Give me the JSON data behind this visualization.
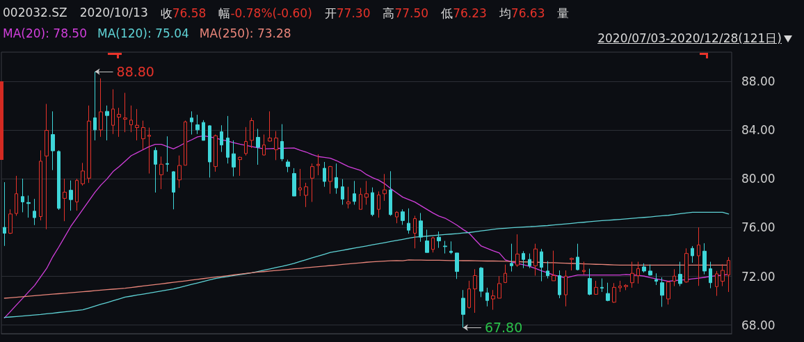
{
  "chart_data": {
    "type": "candlestick",
    "title": "002032.SZ",
    "annotations": [
      "2020/10/13",
      "收76.58",
      "幅-0.78%(-0.60)",
      "开77.30",
      "高77.50",
      "低76.23",
      "均76.63",
      "量",
      "2020/07/03-2020/12/28(121日)",
      "88.80",
      "67.80"
    ],
    "categories": [
      null,
      null,
      null,
      null,
      null,
      null,
      null,
      null,
      null,
      null,
      null,
      null,
      null,
      null,
      null,
      null,
      null,
      null,
      null,
      null,
      null,
      null,
      null,
      null,
      null,
      null,
      null,
      null,
      null,
      null,
      null,
      null,
      null,
      null,
      null,
      null,
      null,
      null,
      null,
      null,
      null,
      null,
      null,
      null,
      null,
      null,
      null,
      null,
      null,
      null,
      null,
      null,
      null,
      null,
      null,
      null,
      null,
      null,
      null,
      null,
      null,
      null,
      null,
      null,
      null,
      null,
      null,
      null,
      null,
      null,
      null,
      null,
      null,
      null,
      null,
      null,
      null,
      null,
      null,
      null,
      null,
      null,
      null,
      null,
      null,
      null,
      null,
      null,
      null,
      null,
      null,
      null,
      null,
      null,
      null,
      null,
      null,
      null,
      null,
      null,
      null,
      null,
      null,
      null,
      null,
      null,
      null,
      null,
      null,
      null,
      null,
      null,
      null,
      null,
      null,
      null,
      null,
      null,
      null,
      null,
      null
    ],
    "ohlc": [
      [
        76.02,
        79.73,
        74.5,
        75.54
      ],
      [
        75.54,
        77.5,
        75.48,
        77.12
      ],
      [
        77.16,
        80.25,
        76.97,
        78.78
      ],
      [
        78.55,
        80.02,
        77.26,
        78.11
      ],
      [
        78.06,
        78.63,
        76.82,
        77.98
      ],
      [
        77.35,
        78.36,
        76.21,
        76.82
      ],
      [
        76.91,
        82.34,
        76.59,
        81.45
      ],
      [
        81.88,
        86.15,
        75.87,
        83.98
      ],
      [
        83.64,
        85.54,
        80.72,
        82.3
      ],
      [
        82.25,
        82.34,
        77.45,
        77.58
      ],
      [
        78.4,
        80.02,
        76.53,
        78.91
      ],
      [
        79.07,
        79.87,
        77.39,
        78.3
      ],
      [
        78.11,
        80.02,
        77.39,
        79.87
      ],
      [
        79.6,
        81.31,
        79.45,
        80.65
      ],
      [
        80.06,
        86.02,
        79.67,
        84.74
      ],
      [
        85.01,
        88.8,
        83.16,
        84.02
      ],
      [
        84.02,
        88.25,
        83.45,
        85.5
      ],
      [
        85.54,
        86.02,
        83.16,
        85.2
      ],
      [
        84.4,
        87.35,
        83.68,
        85.73
      ],
      [
        85.07,
        85.83,
        83.45,
        85.3
      ],
      [
        84.9,
        87.06,
        83.83,
        85.0
      ],
      [
        84.44,
        86.02,
        83.83,
        84.82
      ],
      [
        84.21,
        85.73,
        83.16,
        84.4
      ],
      [
        83.29,
        84.78,
        82.4,
        84.21
      ],
      [
        83.49,
        84.21,
        80.44,
        83.58
      ],
      [
        82.34,
        82.59,
        78.88,
        81.2
      ],
      [
        80.34,
        81.83,
        79.16,
        81.2
      ],
      [
        81.26,
        83.49,
        80.59,
        81.2
      ],
      [
        80.59,
        80.63,
        77.5,
        78.91
      ],
      [
        79.92,
        81.92,
        79.26,
        81.1
      ],
      [
        81.12,
        84.78,
        81.12,
        84.68
      ],
      [
        85.0,
        85.54,
        83.64,
        84.68
      ],
      [
        84.44,
        85.26,
        83.68,
        84.02
      ],
      [
        84.63,
        84.82,
        83.16,
        83.16
      ],
      [
        84.36,
        84.4,
        80.11,
        81.39
      ],
      [
        81.01,
        83.64,
        80.59,
        83.54
      ],
      [
        83.87,
        84.4,
        82.21,
        82.78
      ],
      [
        83.35,
        85.16,
        81.26,
        81.77
      ],
      [
        82.06,
        83.16,
        80.21,
        80.97
      ],
      [
        81.58,
        81.83,
        80.25,
        81.77
      ],
      [
        82.08,
        84.25,
        81.92,
        83.07
      ],
      [
        83.16,
        85.01,
        82.53,
        84.78
      ],
      [
        83.41,
        84.11,
        81.16,
        82.59
      ],
      [
        81.96,
        83.64,
        81.92,
        82.78
      ],
      [
        83.1,
        85.54,
        83.07,
        83.35
      ],
      [
        82.4,
        83.92,
        81.54,
        83.35
      ],
      [
        83.07,
        84.49,
        81.45,
        81.64
      ],
      [
        81.39,
        81.58,
        80.55,
        81.01
      ],
      [
        80.44,
        80.88,
        78.59,
        78.59
      ],
      [
        79.1,
        80.82,
        78.59,
        79.26
      ],
      [
        78.65,
        79.68,
        77.69,
        79.35
      ],
      [
        80.06,
        81.26,
        78.11,
        81.01
      ],
      [
        81.1,
        82.02,
        80.3,
        81.2
      ],
      [
        80.87,
        81.39,
        79.35,
        79.79
      ],
      [
        79.79,
        81.07,
        78.78,
        81.01
      ],
      [
        80.11,
        81.26,
        78.78,
        79.26
      ],
      [
        79.35,
        79.98,
        77.88,
        78.34
      ],
      [
        77.96,
        79.35,
        77.58,
        78.11
      ],
      [
        78.78,
        79.83,
        77.88,
        78.15
      ],
      [
        77.5,
        79.26,
        77.5,
        78.72
      ],
      [
        78.49,
        79.83,
        77.88,
        78.78
      ],
      [
        78.87,
        79.3,
        76.93,
        77.07
      ],
      [
        77.5,
        78.97,
        76.82,
        78.68
      ],
      [
        78.78,
        80.4,
        78.2,
        79.1
      ],
      [
        79.1,
        80.63,
        76.97,
        77.07
      ],
      [
        76.88,
        77.35,
        76.36,
        77.26
      ],
      [
        77.3,
        77.5,
        76.23,
        76.58
      ],
      [
        76.36,
        77.58,
        75.5,
        75.79
      ],
      [
        75.54,
        76.97,
        74.3,
        76.74
      ],
      [
        76.55,
        77.2,
        74.84,
        75.22
      ],
      [
        74.91,
        75.83,
        73.96,
        73.96
      ],
      [
        74.21,
        75.26,
        73.96,
        75.16
      ],
      [
        75.22,
        75.68,
        74.34,
        74.91
      ],
      [
        74.49,
        74.91,
        73.88,
        74.44
      ],
      [
        74.07,
        74.87,
        73.83,
        73.96
      ],
      [
        73.92,
        73.92,
        71.79,
        72.4
      ],
      [
        70.21,
        70.88,
        67.8,
        68.88
      ],
      [
        69.45,
        71.64,
        69.35,
        70.97
      ],
      [
        70.97,
        72.59,
        69.01,
        72.06
      ],
      [
        72.68,
        72.78,
        70.3,
        70.78
      ],
      [
        70.65,
        71.07,
        69.54,
        70.02
      ],
      [
        70.15,
        70.88,
        69.26,
        70.4
      ],
      [
        70.21,
        72.02,
        70.21,
        71.41
      ],
      [
        71.5,
        72.97,
        71.45,
        72.25
      ],
      [
        73.07,
        74.68,
        72.4,
        72.87
      ],
      [
        72.93,
        75.45,
        72.78,
        73.83
      ],
      [
        73.88,
        74.07,
        72.68,
        73.39
      ],
      [
        73.39,
        73.88,
        72.68,
        72.87
      ],
      [
        72.87,
        74.68,
        72.06,
        74.25
      ],
      [
        74.02,
        74.26,
        71.6,
        72.74
      ],
      [
        72.44,
        73.25,
        71.83,
        72.06
      ],
      [
        71.64,
        74.11,
        71.64,
        72.06
      ],
      [
        72.06,
        72.49,
        70.21,
        70.49
      ],
      [
        70.49,
        72.49,
        69.54,
        72.02
      ],
      [
        73.39,
        73.54,
        72.49,
        73.48
      ],
      [
        73.58,
        74.68,
        72.49,
        72.55
      ],
      [
        72.4,
        73.2,
        72.17,
        72.49
      ],
      [
        71.83,
        72.63,
        70.45,
        70.53
      ],
      [
        70.53,
        71.64,
        70.49,
        71.1
      ],
      [
        71.1,
        71.83,
        70.72,
        71.03
      ],
      [
        70.6,
        71.48,
        69.96,
        70.02
      ],
      [
        69.88,
        71.45,
        69.83,
        71.1
      ],
      [
        71.07,
        71.64,
        70.72,
        71.2
      ],
      [
        71.16,
        71.35,
        70.87,
        71.26
      ],
      [
        71.48,
        73.2,
        71.07,
        72.25
      ],
      [
        72.06,
        73.2,
        71.41,
        72.63
      ],
      [
        72.78,
        73.07,
        72.31,
        72.44
      ],
      [
        72.44,
        72.97,
        72.06,
        72.11
      ],
      [
        71.73,
        72.25,
        71.29,
        71.6
      ],
      [
        71.48,
        71.92,
        69.5,
        70.45
      ],
      [
        70.15,
        71.64,
        69.69,
        71.54
      ],
      [
        71.6,
        72.59,
        71.2,
        72.02
      ],
      [
        72.17,
        73.2,
        71.2,
        71.41
      ],
      [
        71.54,
        74.3,
        71.48,
        73.88
      ],
      [
        74.3,
        74.49,
        73.12,
        73.69
      ],
      [
        73.69,
        76.02,
        71.22,
        74.58
      ],
      [
        74.07,
        74.72,
        72.17,
        72.44
      ],
      [
        72.63,
        73.2,
        71.03,
        71.48
      ],
      [
        71.16,
        72.44,
        70.4,
        72.21
      ],
      [
        71.6,
        73.0,
        71.2,
        72.49
      ],
      [
        72.11,
        73.58,
        70.72,
        73.31
      ]
    ],
    "colors": [
      "#3fd6d9",
      "#e8332a",
      "#e8332a",
      "#3fd6d9",
      "#3fd6d9",
      "#3fd6d9",
      "#e8332a",
      "#e8332a",
      "#3fd6d9",
      "#3fd6d9",
      "#e8332a",
      "#3fd6d9",
      "#e8332a",
      "#e8332a",
      "#e8332a",
      "#3fd6d9",
      "#e8332a",
      "#3fd6d9",
      "#e8332a",
      "#e8332a",
      "#e8332a",
      "#e8332a",
      "#e8332a",
      "#e8332a",
      "#e8332a",
      "#3fd6d9",
      "#e8332a",
      "#3fd6d9",
      "#3fd6d9",
      "#e8332a",
      "#e8332a",
      "#3fd6d9",
      "#3fd6d9",
      "#3fd6d9",
      "#3fd6d9",
      "#e8332a",
      "#3fd6d9",
      "#3fd6d9",
      "#3fd6d9",
      "#e8332a",
      "#e8332a",
      "#e8332a",
      "#3fd6d9",
      "#e8332a",
      "#e8332a",
      "#e8332a",
      "#3fd6d9",
      "#3fd6d9",
      "#3fd6d9",
      "#e8332a",
      "#e8332a",
      "#e8332a",
      "#e8332a",
      "#3fd6d9",
      "#e8332a",
      "#3fd6d9",
      "#3fd6d9",
      "#e8332a",
      "#3fd6d9",
      "#e8332a",
      "#e8332a",
      "#3fd6d9",
      "#e8332a",
      "#e8332a",
      "#3fd6d9",
      "#e8332a",
      "#3fd6d9",
      "#3fd6d9",
      "#e8332a",
      "#3fd6d9",
      "#3fd6d9",
      "#e8332a",
      "#3fd6d9",
      "#3fd6d9",
      "#3fd6d9",
      "#3fd6d9",
      "#3fd6d9",
      "#e8332a",
      "#e8332a",
      "#3fd6d9",
      "#3fd6d9",
      "#e8332a",
      "#e8332a",
      "#e8332a",
      "#3fd6d9",
      "#e8332a",
      "#3fd6d9",
      "#3fd6d9",
      "#e8332a",
      "#3fd6d9",
      "#3fd6d9",
      "#e8332a",
      "#3fd6d9",
      "#e8332a",
      "#e8332a",
      "#3fd6d9",
      "#e8332a",
      "#3fd6d9",
      "#e8332a",
      "#3fd6d9",
      "#3fd6d9",
      "#e8332a",
      "#e8332a",
      "#e8332a",
      "#e8332a",
      "#e8332a",
      "#3fd6d9",
      "#3fd6d9",
      "#3fd6d9",
      "#3fd6d9",
      "#e8332a",
      "#e8332a",
      "#3fd6d9",
      "#e8332a",
      "#3fd6d9",
      "#e8332a",
      "#3fd6d9",
      "#3fd6d9",
      "#e8332a",
      "#e8332a",
      "#e8332a"
    ],
    "series": [
      {
        "type": "line",
        "name": "MA(20): 78.50",
        "color": "#d23fdc",
        "values": [
          68.59,
          69.12,
          69.66,
          70.19,
          70.73,
          71.26,
          71.95,
          72.65,
          73.6,
          74.4,
          75.25,
          76.1,
          76.8,
          77.5,
          78.2,
          78.9,
          79.5,
          80.0,
          80.6,
          81.0,
          81.45,
          81.9,
          82.15,
          82.4,
          82.65,
          82.84,
          82.84,
          82.65,
          82.46,
          82.7,
          82.97,
          83.2,
          83.45,
          83.54,
          83.45,
          83.35,
          83.2,
          83.1,
          82.97,
          82.85,
          82.75,
          82.65,
          82.55,
          82.46,
          82.48,
          82.5,
          82.5,
          82.52,
          82.53,
          82.35,
          82.2,
          82.0,
          81.83,
          81.77,
          81.7,
          81.5,
          81.25,
          81.01,
          80.85,
          80.7,
          80.35,
          80.1,
          79.9,
          79.6,
          79.2,
          78.85,
          78.5,
          78.3,
          78.1,
          77.8,
          77.5,
          77.2,
          76.95,
          76.78,
          76.5,
          76.2,
          75.85,
          75.54,
          75.0,
          74.49,
          74.3,
          74.1,
          73.92,
          73.35,
          73.2,
          73.05,
          72.95,
          72.82,
          72.65,
          72.45,
          72.3,
          72.11,
          72.0,
          71.87,
          72.0,
          72.11,
          72.11,
          72.11,
          72.11,
          72.11,
          72.11,
          72.11,
          72.11,
          72.15,
          72.12,
          72.08,
          72.02,
          71.9,
          71.8,
          71.7,
          71.6,
          71.65,
          71.7,
          71.73,
          71.8,
          71.85,
          71.92,
          72.0,
          72.05,
          72.1,
          72.17
        ]
      },
      {
        "type": "line",
        "name": "MA(120): 75.04",
        "color": "#5fd3d6",
        "values": [
          68.63,
          68.67,
          68.71,
          68.75,
          68.79,
          68.83,
          68.87,
          68.93,
          68.98,
          69.04,
          69.09,
          69.15,
          69.2,
          69.26,
          69.41,
          69.56,
          69.71,
          69.85,
          70.0,
          70.15,
          70.3,
          70.38,
          70.47,
          70.55,
          70.63,
          70.72,
          70.8,
          70.89,
          70.97,
          71.09,
          71.21,
          71.34,
          71.46,
          71.58,
          71.71,
          71.83,
          71.91,
          71.99,
          72.07,
          72.14,
          72.22,
          72.3,
          72.4,
          72.51,
          72.61,
          72.72,
          72.82,
          72.94,
          73.07,
          73.22,
          73.37,
          73.52,
          73.66,
          73.81,
          73.96,
          74.05,
          74.14,
          74.23,
          74.32,
          74.41,
          74.5,
          74.59,
          74.68,
          74.77,
          74.86,
          74.95,
          75.04,
          75.13,
          75.22,
          75.26,
          75.3,
          75.35,
          75.39,
          75.43,
          75.47,
          75.51,
          75.56,
          75.6,
          75.66,
          75.73,
          75.79,
          75.86,
          75.92,
          75.95,
          75.99,
          76.02,
          76.05,
          76.08,
          76.11,
          76.14,
          76.17,
          76.22,
          76.26,
          76.31,
          76.35,
          76.4,
          76.44,
          76.49,
          76.53,
          76.57,
          76.6,
          76.64,
          76.68,
          76.72,
          76.76,
          76.8,
          76.84,
          76.88,
          76.93,
          76.97,
          77.01,
          77.07,
          77.14,
          77.2,
          77.26,
          77.26,
          77.26,
          77.26,
          77.26,
          77.26,
          77.12
        ]
      },
      {
        "type": "line",
        "name": "MA(250): 73.28",
        "color": "#e9857a",
        "values": [
          70.21,
          70.25,
          70.29,
          70.33,
          70.37,
          70.42,
          70.46,
          70.5,
          70.54,
          70.58,
          70.62,
          70.66,
          70.7,
          70.74,
          70.78,
          70.83,
          70.87,
          70.91,
          70.95,
          70.99,
          71.03,
          71.09,
          71.15,
          71.21,
          71.27,
          71.33,
          71.39,
          71.45,
          71.51,
          71.57,
          71.63,
          71.7,
          71.76,
          71.82,
          71.88,
          71.94,
          72.0,
          72.06,
          72.12,
          72.18,
          72.24,
          72.3,
          72.35,
          72.39,
          72.44,
          72.48,
          72.53,
          72.57,
          72.62,
          72.66,
          72.71,
          72.75,
          72.8,
          72.84,
          72.89,
          72.93,
          72.98,
          73.02,
          73.07,
          73.11,
          73.16,
          73.2,
          73.23,
          73.25,
          73.28,
          73.3,
          73.28,
          73.35,
          73.34,
          73.34,
          73.33,
          73.33,
          73.32,
          73.31,
          73.3,
          73.3,
          73.29,
          73.29,
          73.28,
          73.27,
          73.26,
          73.26,
          73.25,
          73.24,
          73.22,
          73.21,
          73.19,
          73.18,
          73.16,
          73.15,
          73.13,
          73.12,
          73.1,
          73.08,
          73.06,
          73.05,
          73.03,
          73.01,
          72.99,
          72.98,
          72.96,
          72.94,
          72.93,
          72.93,
          72.93,
          72.93,
          72.93,
          72.93,
          72.93,
          72.93,
          72.93,
          72.93,
          72.93,
          72.93,
          72.93,
          72.93,
          72.93,
          72.93,
          72.93,
          72.93,
          72.93
        ]
      }
    ],
    "ylim": [
      67.3,
      90.4
    ],
    "yticks": [
      {
        "value": 68,
        "label": "68.00"
      },
      {
        "value": 72,
        "label": "72.00"
      },
      {
        "value": 76,
        "label": "76.00"
      },
      {
        "value": 80,
        "label": "80.00"
      },
      {
        "value": 84,
        "label": "84.00"
      },
      {
        "value": 88,
        "label": "88.00"
      }
    ],
    "grid": "y",
    "legend": "top left",
    "line_style": "solid"
  }
}
